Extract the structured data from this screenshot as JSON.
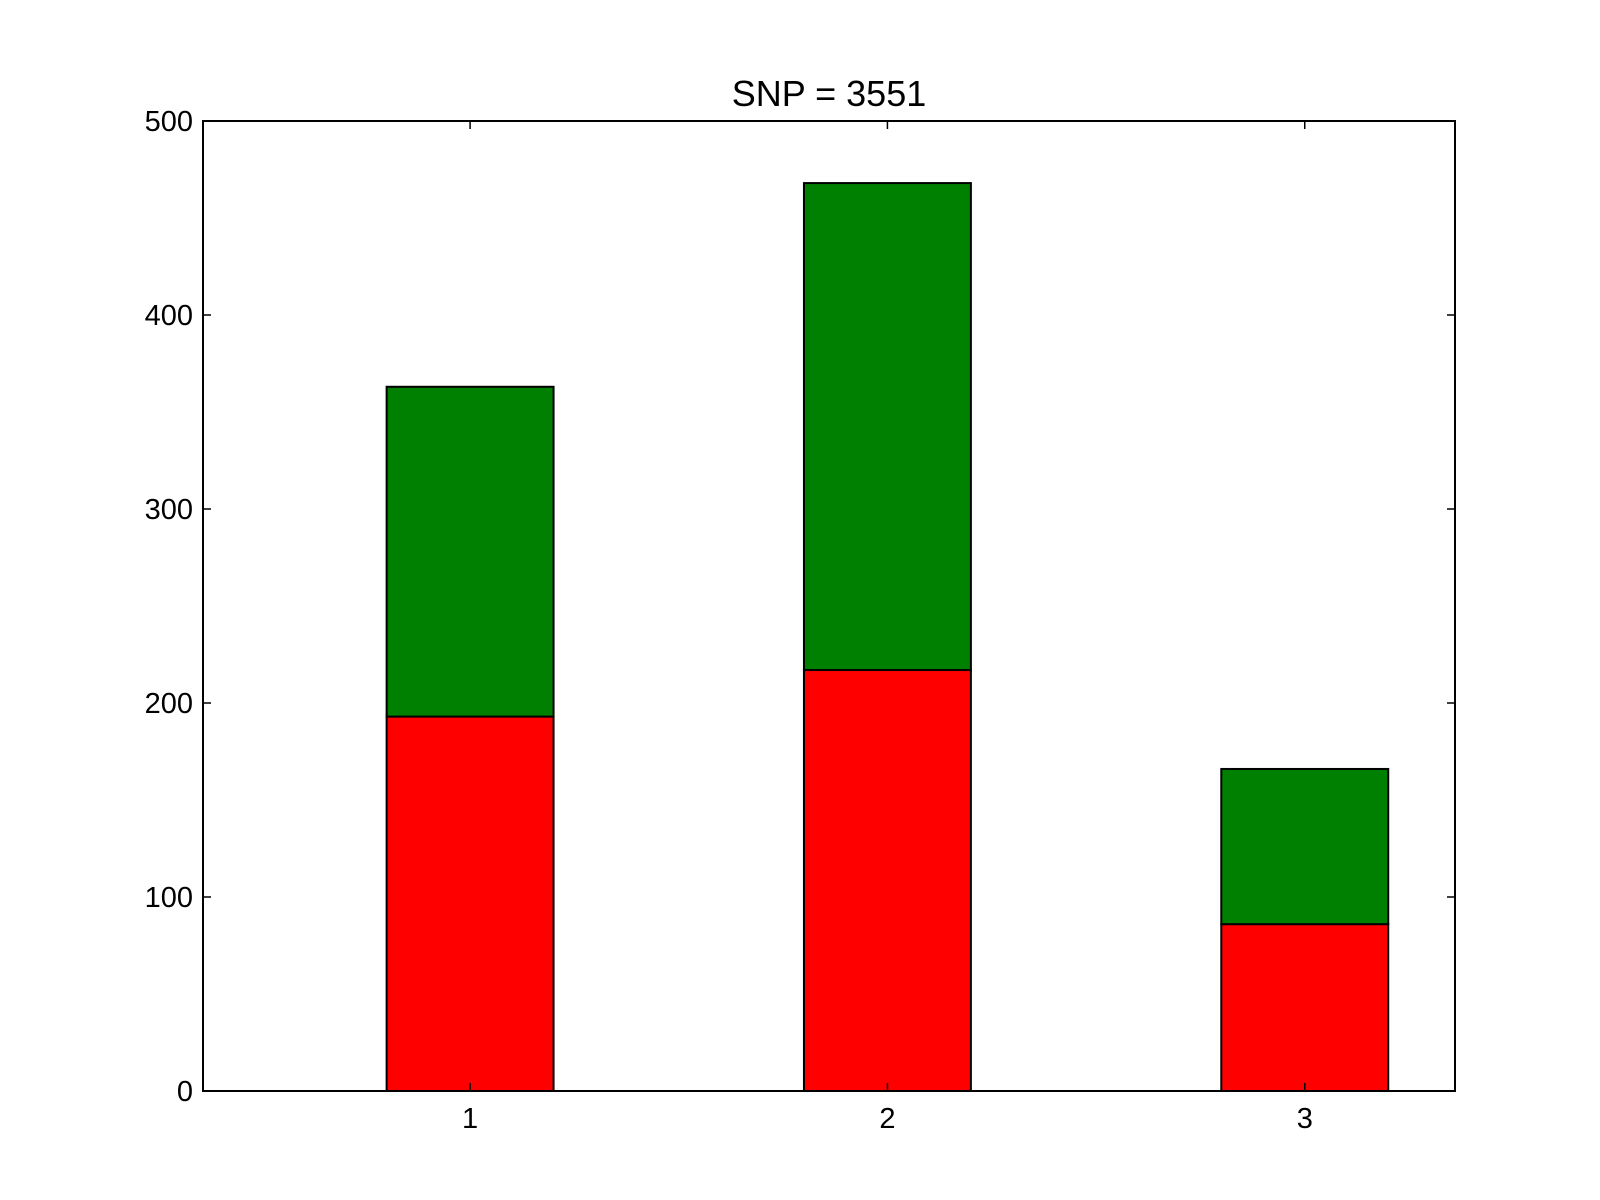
{
  "chart_data": {
    "type": "bar",
    "stacked": true,
    "title": "SNP = 3551",
    "xlabel": "",
    "ylabel": "",
    "categories": [
      "1",
      "2",
      "3"
    ],
    "x": [
      1,
      2,
      3
    ],
    "xlim": [
      0.36,
      3.36
    ],
    "ylim": [
      0,
      500
    ],
    "yticks": [
      0,
      100,
      200,
      300,
      400,
      500
    ],
    "bar_width": 0.4,
    "grid": false,
    "series": [
      {
        "values": [
          193,
          217,
          86
        ],
        "color": "#ff0000"
      },
      {
        "values": [
          170,
          251,
          80
        ],
        "color": "#008000"
      }
    ],
    "edge_color": "#000000"
  }
}
